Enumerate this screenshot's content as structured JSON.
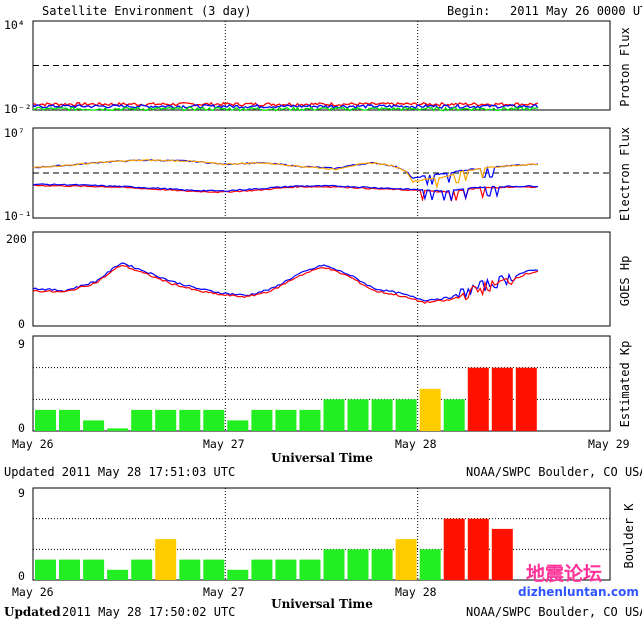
{
  "header": {
    "title": "Satellite Environment (3 day)",
    "begin_label": "Begin:",
    "begin_value": "2011 May 26 0000 UTC"
  },
  "colors": {
    "red": "#ff0000",
    "blue": "#0000ff",
    "green": "#00dd00",
    "orange": "#ffa500",
    "kp_green": "#22ee22",
    "kp_yellow": "#ffcc00",
    "kp_red": "#ff1100",
    "watermark_pink": "#ff3399",
    "watermark_blue": "#3355ff"
  },
  "chart_data": [
    {
      "type": "line",
      "ylabel": "Proton Flux",
      "yscale": "log",
      "ytick_labels": [
        "10⁴",
        "10⁻²"
      ],
      "ylim": [
        0.01,
        10000
      ],
      "threshold": 10,
      "x_unit": "hours since 2011 May 26 0000 UTC",
      "series": [
        {
          "color": "red",
          "level": 0.025
        },
        {
          "color": "blue",
          "level": 0.018
        },
        {
          "color": "green",
          "level": 0.012
        }
      ]
    },
    {
      "type": "line",
      "ylabel": "Electron Flux",
      "yscale": "log",
      "ytick_labels": [
        "10⁷",
        "10⁻¹"
      ],
      "ylim": [
        0.1,
        10000000
      ],
      "threshold": 1000,
      "series": [
        {
          "color": "blue",
          "x": [
            0,
            6,
            12,
            18,
            24,
            30,
            36,
            42,
            48,
            54,
            60,
            66,
            72,
            80
          ],
          "y": [
            3000,
            5000,
            10000,
            14000,
            12000,
            6000,
            8000,
            4000,
            2500,
            8000,
            300,
            1000,
            3000,
            6000
          ]
        },
        {
          "color": "orange",
          "x": [
            0,
            6,
            12,
            18,
            24,
            30,
            36,
            42,
            48,
            54,
            60,
            66,
            72,
            80
          ],
          "y": [
            3000,
            5000,
            10000,
            14000,
            12000,
            6000,
            8000,
            4000,
            2000,
            8000,
            150,
            500,
            3000,
            6000
          ]
        },
        {
          "color": "red",
          "x": [
            0,
            6,
            12,
            18,
            24,
            30,
            36,
            42,
            48,
            54,
            60,
            66,
            72,
            80
          ],
          "y": [
            80,
            70,
            60,
            40,
            25,
            20,
            30,
            60,
            60,
            40,
            30,
            20,
            50,
            60
          ]
        },
        {
          "color": "blue",
          "x": [
            0,
            6,
            12,
            18,
            24,
            30,
            36,
            42,
            48,
            54,
            60,
            66,
            72,
            80
          ],
          "y": [
            100,
            90,
            70,
            50,
            30,
            25,
            40,
            70,
            70,
            50,
            35,
            25,
            60,
            70
          ]
        }
      ]
    },
    {
      "type": "line",
      "ylabel": "GOES Hp",
      "ytick_labels": [
        "200",
        "0"
      ],
      "ylim": [
        0,
        200
      ],
      "series": [
        {
          "color": "blue",
          "x": [
            0,
            5,
            10,
            14,
            18,
            22,
            26,
            30,
            34,
            38,
            42,
            46,
            50,
            54,
            58,
            62,
            66,
            70,
            74,
            78,
            80
          ],
          "y": [
            80,
            75,
            95,
            135,
            115,
            95,
            80,
            70,
            65,
            80,
            110,
            130,
            110,
            80,
            70,
            55,
            60,
            80,
            95,
            115,
            120
          ]
        },
        {
          "color": "red",
          "x": [
            0,
            5,
            10,
            14,
            18,
            22,
            26,
            30,
            34,
            38,
            42,
            46,
            50,
            54,
            58,
            62,
            66,
            70,
            74,
            78,
            80
          ],
          "y": [
            75,
            72,
            92,
            130,
            110,
            90,
            75,
            66,
            62,
            76,
            106,
            126,
            106,
            75,
            65,
            50,
            55,
            75,
            90,
            110,
            117
          ]
        }
      ]
    },
    {
      "type": "bar",
      "ylabel": "Estimated Kp",
      "ytick_labels": [
        "9",
        "0"
      ],
      "ylim": [
        0,
        9
      ],
      "bar_width_hours": 3,
      "values": [
        2,
        2,
        1,
        0.25,
        2,
        2,
        2,
        2,
        1,
        2,
        2,
        2,
        3,
        3,
        3,
        3,
        4,
        3,
        6,
        6,
        6
      ],
      "bar_colors": [
        "kp_green",
        "kp_green",
        "kp_green",
        "kp_green",
        "kp_green",
        "kp_green",
        "kp_green",
        "kp_green",
        "kp_green",
        "kp_green",
        "kp_green",
        "kp_green",
        "kp_green",
        "kp_green",
        "kp_green",
        "kp_green",
        "kp_yellow",
        "kp_green",
        "kp_red",
        "kp_red",
        "kp_red"
      ],
      "x_tick_labels": [
        "May 26",
        "May 27",
        "May 28",
        "May 29"
      ],
      "xlabel": "Universal Time"
    },
    {
      "type": "bar",
      "ylabel": "Boulder K",
      "ytick_labels": [
        "9",
        "0"
      ],
      "ylim": [
        0,
        9
      ],
      "bar_width_hours": 3,
      "values": [
        2,
        2,
        2,
        1,
        2,
        4,
        2,
        2,
        1,
        2,
        2,
        2,
        3,
        3,
        3,
        4,
        3,
        6,
        6,
        5
      ],
      "bar_colors": [
        "kp_green",
        "kp_green",
        "kp_green",
        "kp_green",
        "kp_green",
        "kp_yellow",
        "kp_green",
        "kp_green",
        "kp_green",
        "kp_green",
        "kp_green",
        "kp_green",
        "kp_green",
        "kp_green",
        "kp_green",
        "kp_yellow",
        "kp_green",
        "kp_red",
        "kp_red",
        "kp_red"
      ],
      "x_tick_labels": [
        "May 26",
        "May 27",
        "May 28"
      ],
      "xlabel": "Universal Time"
    }
  ],
  "footer1": {
    "updated": "Updated 2011 May 28 17:51:03 UTC",
    "source": "NOAA/SWPC Boulder, CO USA"
  },
  "footer2": {
    "updated_label": "Updated",
    "updated_value": "2011 May 28 17:50:02 UTC",
    "source": "NOAA/SWPC Boulder, CO USA"
  },
  "watermark": {
    "chinese": "地震论坛",
    "url": "dizhenluntan.com"
  }
}
